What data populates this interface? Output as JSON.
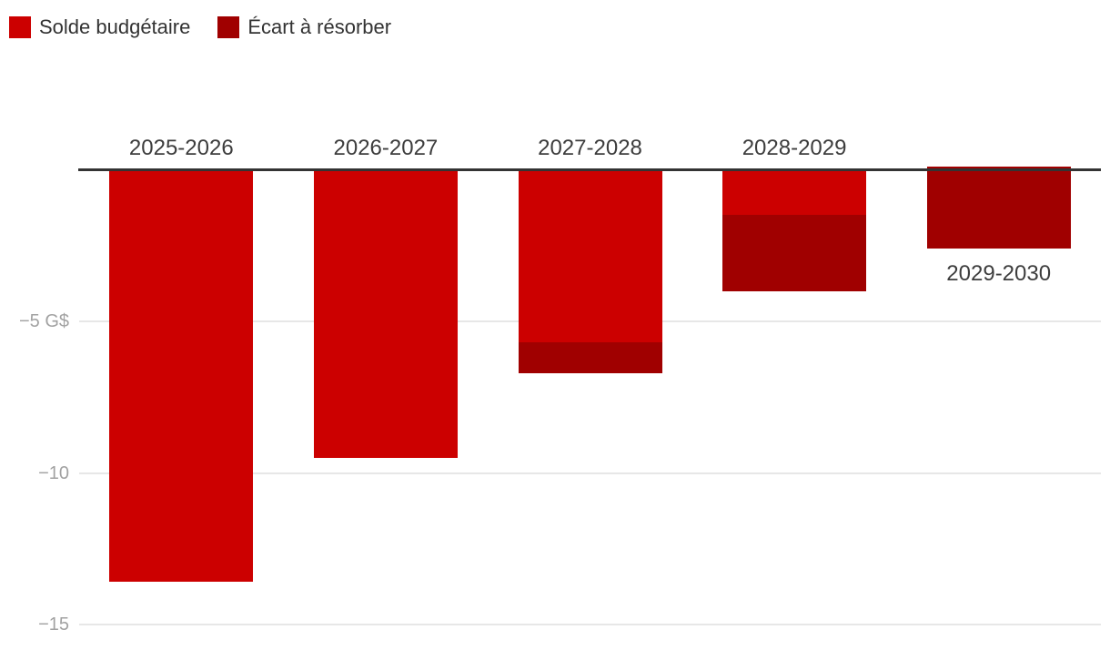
{
  "legend": {
    "items": [
      {
        "label": "Solde budgétaire",
        "color": "#cc0000"
      },
      {
        "label": "Écart à résorber",
        "color": "#a00000"
      }
    ]
  },
  "chart_data": {
    "type": "bar",
    "stacked": true,
    "title": "",
    "categories": [
      "2025-2026",
      "2026-2027",
      "2027-2028",
      "2028-2029",
      "2029-2030"
    ],
    "series": [
      {
        "name": "Solde budgétaire",
        "color": "#cc0000",
        "values": [
          -13.6,
          -9.5,
          -5.7,
          -1.5,
          0.1
        ]
      },
      {
        "name": "Écart à résorber",
        "color": "#a00000",
        "values": [
          0,
          0,
          -1.0,
          -2.5,
          -2.7
        ]
      }
    ],
    "stack_totals": [
      -13.6,
      -9.5,
      -6.7,
      -4.0,
      -2.6
    ],
    "unit": "G$",
    "ylabel": "",
    "xlabel": "",
    "ylim": [
      -15.9,
      0.6
    ],
    "y_ticks": [
      {
        "value": -5,
        "label": "−5 G$"
      },
      {
        "value": -10,
        "label": "−10"
      },
      {
        "value": -15,
        "label": "−15"
      }
    ],
    "grid": true,
    "legend_position": "top-left",
    "zero_axis_line": true,
    "category_label_note": "labels above zero axis; 2029-2030 label below its bar"
  }
}
